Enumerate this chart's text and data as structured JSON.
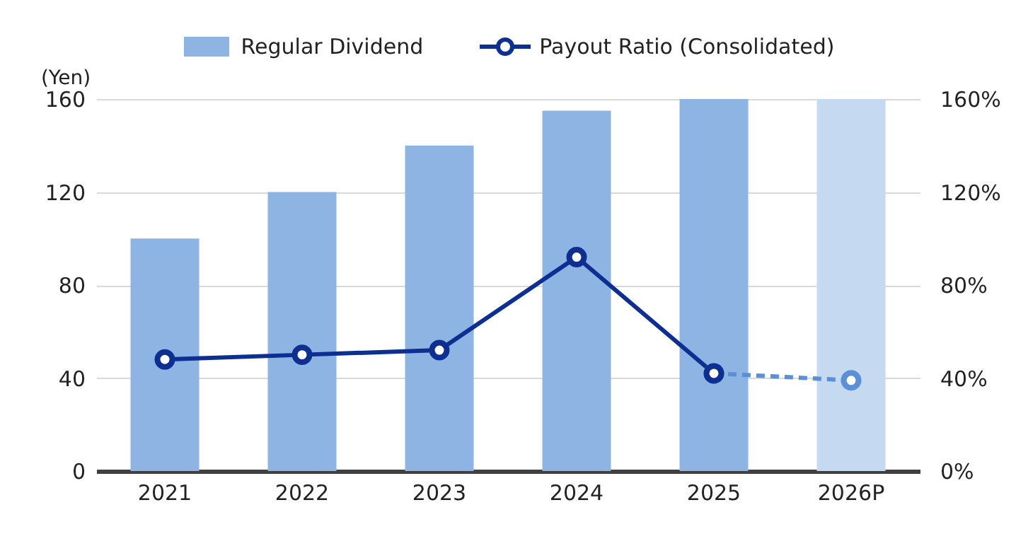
{
  "chart_data": {
    "type": "bar",
    "ylabel": "(Yen)",
    "categories": [
      "2021",
      "2022",
      "2023",
      "2024",
      "2025",
      "2026P"
    ],
    "series": [
      {
        "name": "Regular Dividend",
        "color": "#8eb4e3",
        "colors": [
          "#8eb4e3",
          "#8eb4e3",
          "#8eb4e3",
          "#8eb4e3",
          "#8eb4e3",
          "#c5d9f1"
        ],
        "values": [
          100,
          120,
          140,
          155,
          160,
          160
        ]
      },
      {
        "type": "line",
        "name": "Payout Ratio (Consolidated)",
        "axis": "y2",
        "color": "#0d2f91",
        "line_style": "solid",
        "marker": "circle",
        "values": [
          48,
          50,
          52,
          92,
          42,
          null
        ]
      },
      {
        "type": "line",
        "axis": "y2",
        "color": "#5b8fd6",
        "line_style": "dashed",
        "marker": "circle",
        "values": [
          null,
          null,
          null,
          null,
          42,
          39
        ]
      }
    ],
    "ylim": [
      0,
      160
    ],
    "yticks": [
      0,
      40,
      80,
      120,
      160
    ],
    "y2lim": [
      0,
      160
    ],
    "y2ticks": [
      {
        "value": 0,
        "label": "0%"
      },
      {
        "value": 40,
        "label": "40%"
      },
      {
        "value": 80,
        "label": "80%"
      },
      {
        "value": 120,
        "label": "120%"
      },
      {
        "value": 160,
        "label": "160%"
      }
    ],
    "grid": "y",
    "legend": "top"
  }
}
